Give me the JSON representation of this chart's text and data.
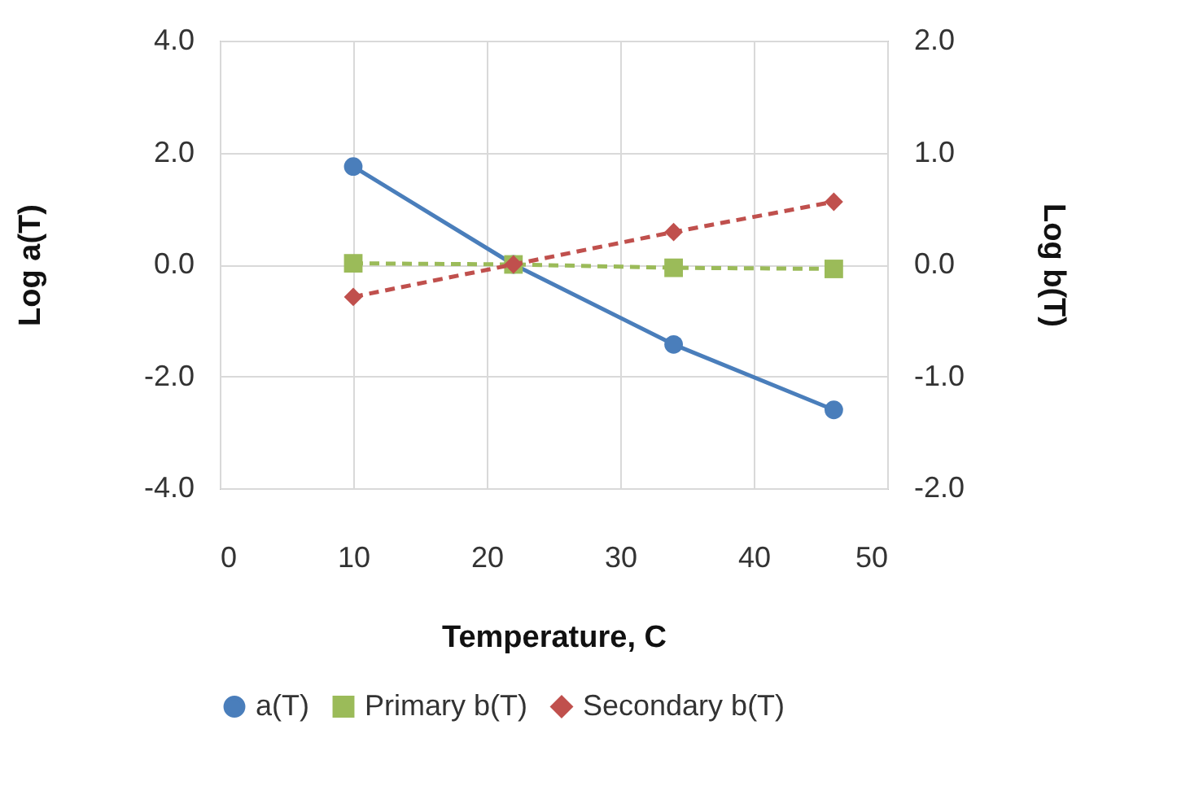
{
  "chart_data": {
    "type": "line",
    "xlabel": "Temperature, C",
    "ylabel": "Log  a(T)",
    "y2label": "Log b(T)",
    "x": [
      10,
      22,
      34,
      46
    ],
    "series": [
      {
        "name": "a(T)",
        "color": "#4a7ebb",
        "values": [
          1.75,
          0,
          -1.43,
          -2.6
        ],
        "marker": "circle",
        "line_style": "solid"
      },
      {
        "name": "Primary b(T)",
        "color": "#9bbb59",
        "values": [
          0.01,
          0,
          -0.03,
          -0.04
        ],
        "axis": "y2",
        "marker": "square",
        "line_style": "dashed"
      },
      {
        "name": "Secondary b(T)",
        "color": "#c0504d",
        "values": [
          -0.29,
          0,
          0.29,
          0.56
        ],
        "axis": "y2",
        "marker": "diamond",
        "line_style": "dashed"
      }
    ],
    "xlim": [
      0,
      50
    ],
    "xticks": [
      0,
      10,
      20,
      30,
      40,
      50
    ],
    "ylim": [
      -4,
      4
    ],
    "yticks": [
      {
        "value": -4,
        "label": "-4.0"
      },
      {
        "value": -2,
        "label": "-2.0"
      },
      {
        "value": 0,
        "label": "0.0"
      },
      {
        "value": 2,
        "label": "2.0"
      },
      {
        "value": 4,
        "label": "4.0"
      }
    ],
    "y2lim": [
      -2,
      2
    ],
    "y2ticks": [
      {
        "value": -2,
        "label": "-2.0"
      },
      {
        "value": -1,
        "label": "-1.0"
      },
      {
        "value": 0,
        "label": "0.0"
      },
      {
        "value": 1,
        "label": "1.0"
      },
      {
        "value": 2,
        "label": "2.0"
      }
    ],
    "grid": true,
    "legend": "bottom"
  }
}
